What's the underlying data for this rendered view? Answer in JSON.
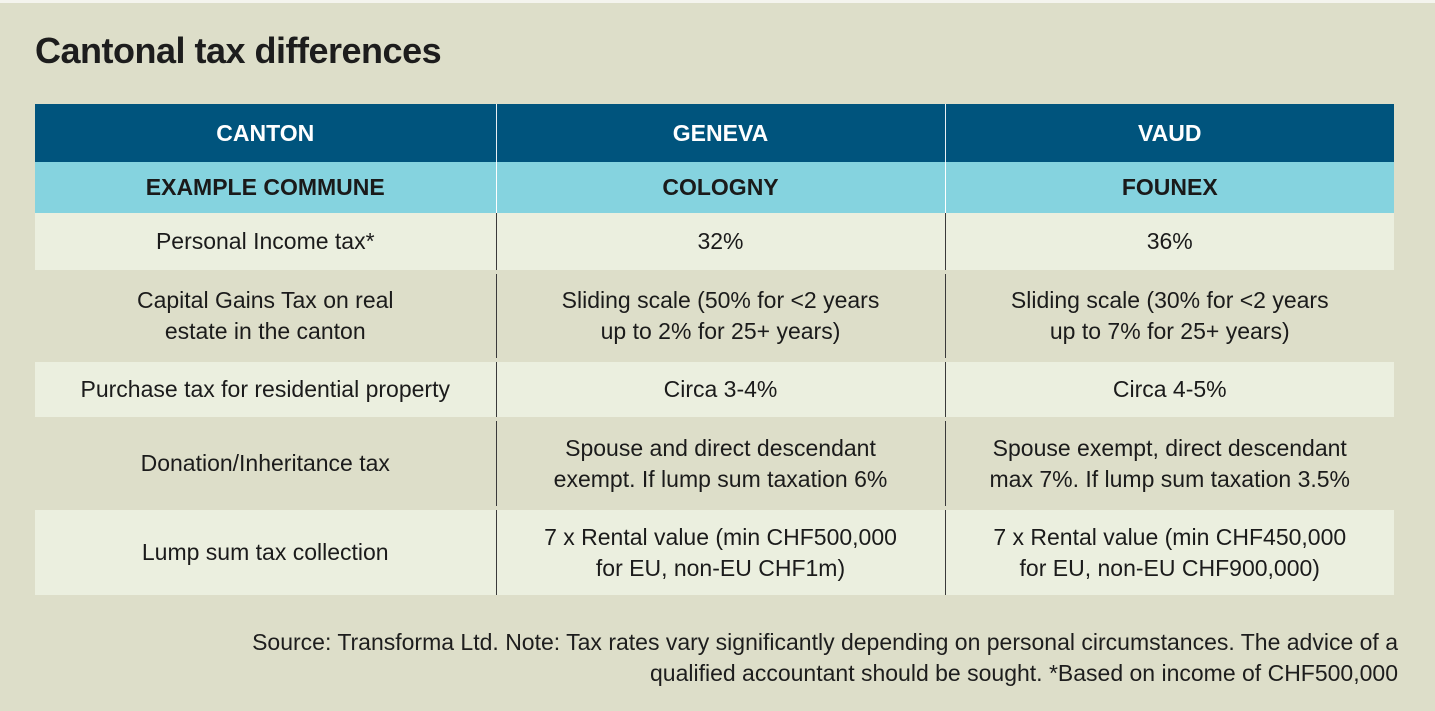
{
  "title": "Cantonal tax differences",
  "table": {
    "header": [
      "CANTON",
      "GENEVA",
      "VAUD"
    ],
    "subheader": [
      "EXAMPLE COMMUNE",
      "COLOGNY",
      "FOUNEX"
    ],
    "rows": [
      {
        "label": [
          "Personal Income tax*"
        ],
        "geneva": [
          "32%"
        ],
        "vaud": [
          "36%"
        ]
      },
      {
        "label": [
          "Capital Gains Tax on real",
          "estate in the canton"
        ],
        "geneva": [
          "Sliding scale (50% for <2 years",
          "up to 2% for 25+ years)"
        ],
        "vaud": [
          "Sliding scale (30% for <2 years",
          "up to 7% for 25+ years)"
        ]
      },
      {
        "label": [
          "Purchase tax for residential property"
        ],
        "geneva": [
          "Circa 3-4%"
        ],
        "vaud": [
          "Circa 4-5%"
        ]
      },
      {
        "label": [
          "Donation/Inheritance tax"
        ],
        "geneva": [
          "Spouse and direct descendant",
          "exempt. If lump sum taxation 6%"
        ],
        "vaud": [
          "Spouse exempt, direct descendant",
          "max 7%. If lump sum taxation 3.5%"
        ]
      },
      {
        "label": [
          "Lump sum tax collection"
        ],
        "geneva": [
          "7 x Rental value (min CHF500,000",
          "for EU, non-EU CHF1m)"
        ],
        "vaud": [
          "7 x Rental value (min CHF450,000",
          "for EU, non-EU CHF900,000)"
        ]
      }
    ]
  },
  "source": [
    "Source: Transforma Ltd. Note: Tax rates vary significantly depending on personal circumstances. The advice of a",
    "qualified accountant should be sought. *Based on income of CHF500,000"
  ],
  "colors": {
    "background": "#dddec9",
    "header": "#00547d",
    "subheader": "#85d3df",
    "row_light": "#ebefdf"
  }
}
